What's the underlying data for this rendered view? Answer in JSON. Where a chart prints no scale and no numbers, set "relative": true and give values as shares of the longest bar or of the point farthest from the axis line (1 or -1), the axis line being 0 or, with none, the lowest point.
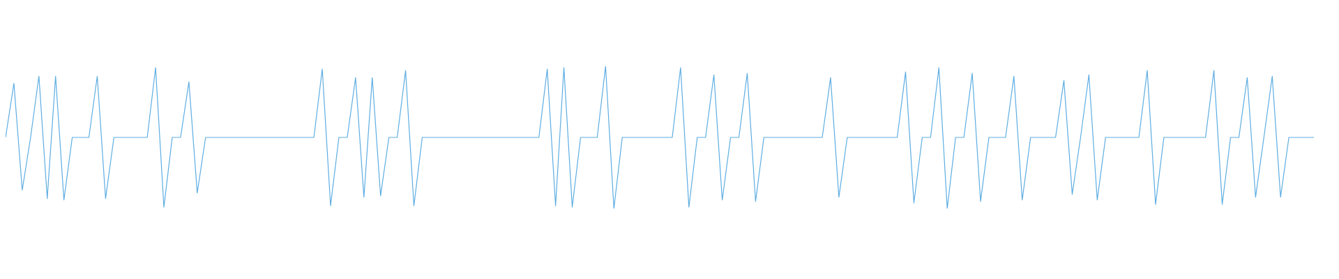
{
  "chart_data": {
    "type": "line",
    "relative": true,
    "color": "#5dade2",
    "categories": [
      null,
      null,
      null,
      null,
      null,
      null,
      null,
      null,
      null,
      null,
      null,
      null,
      null,
      null,
      null,
      null,
      null,
      null,
      null,
      null,
      null,
      null,
      null,
      null,
      null,
      null,
      null,
      null,
      null,
      null,
      null,
      null,
      null,
      null,
      null,
      null,
      null,
      null,
      null,
      null,
      null,
      null,
      null,
      null,
      null,
      null,
      null,
      null,
      null,
      null,
      null,
      null,
      null,
      null,
      null,
      null,
      null,
      null,
      null,
      null,
      null,
      null,
      null,
      null,
      null,
      null,
      null,
      null,
      null,
      null,
      null,
      null,
      null,
      null,
      null,
      null,
      null,
      null,
      null,
      null,
      null,
      null,
      null,
      null,
      null,
      null,
      null,
      null,
      null,
      null,
      null,
      null,
      null,
      null,
      null,
      null,
      null,
      null,
      null,
      null,
      null,
      null,
      null,
      null,
      null,
      null,
      null,
      null,
      null,
      null,
      null,
      null,
      null,
      null,
      null,
      null,
      null,
      null,
      null,
      null,
      null,
      null,
      null,
      null,
      null,
      null,
      null,
      null,
      null,
      null,
      null,
      null,
      null,
      null,
      null,
      null,
      null,
      null,
      null,
      null,
      null,
      null,
      null,
      null,
      null,
      null,
      null,
      null,
      null,
      null,
      null,
      null,
      null,
      null,
      null,
      null,
      null,
      null
    ],
    "values": [
      0.5,
      0.88,
      0.13,
      0.5,
      0.93,
      0.07,
      0.93,
      0.06,
      0.5,
      0.5,
      0.5,
      0.93,
      0.07,
      0.5,
      0.5,
      0.5,
      0.5,
      0.5,
      0.99,
      0.01,
      0.5,
      0.5,
      0.89,
      0.11,
      0.5,
      0.5,
      0.5,
      0.5,
      0.5,
      0.5,
      0.5,
      0.5,
      0.5,
      0.5,
      0.5,
      0.5,
      0.5,
      0.5,
      0.98,
      0.02,
      0.5,
      0.5,
      0.92,
      0.08,
      0.92,
      0.09,
      0.5,
      0.5,
      0.97,
      0.02,
      0.5,
      0.5,
      0.5,
      0.5,
      0.5,
      0.5,
      0.5,
      0.5,
      0.5,
      0.5,
      0.5,
      0.5,
      0.5,
      0.5,
      0.5,
      0.98,
      0.02,
      0.99,
      0.01,
      0.5,
      0.5,
      0.5,
      1,
      0,
      0.5,
      0.5,
      0.5,
      0.5,
      0.5,
      0.5,
      0.5,
      0.99,
      0.01,
      0.5,
      0.5,
      0.94,
      0.06,
      0.5,
      0.5,
      0.95,
      0.05,
      0.5,
      0.5,
      0.5,
      0.5,
      0.5,
      0.5,
      0.5,
      0.5,
      0.92,
      0.08,
      0.5,
      0.5,
      0.5,
      0.5,
      0.5,
      0.5,
      0.5,
      0.96,
      0.04,
      0.5,
      0.5,
      0.99,
      0,
      0.5,
      0.5,
      0.95,
      0.05,
      0.5,
      0.5,
      0.5,
      0.93,
      0.06,
      0.5,
      0.5,
      0.5,
      0.5,
      0.9,
      0.1,
      0.5,
      0.94,
      0.06,
      0.5,
      0.5,
      0.5,
      0.5,
      0.5,
      0.97,
      0.03,
      0.5,
      0.5,
      0.5,
      0.5,
      0.5,
      0.5,
      0.97,
      0.03,
      0.5,
      0.5,
      0.92,
      0.08,
      0.5,
      0.93,
      0.08,
      0.5,
      0.5,
      0.5,
      0.5
    ]
  }
}
